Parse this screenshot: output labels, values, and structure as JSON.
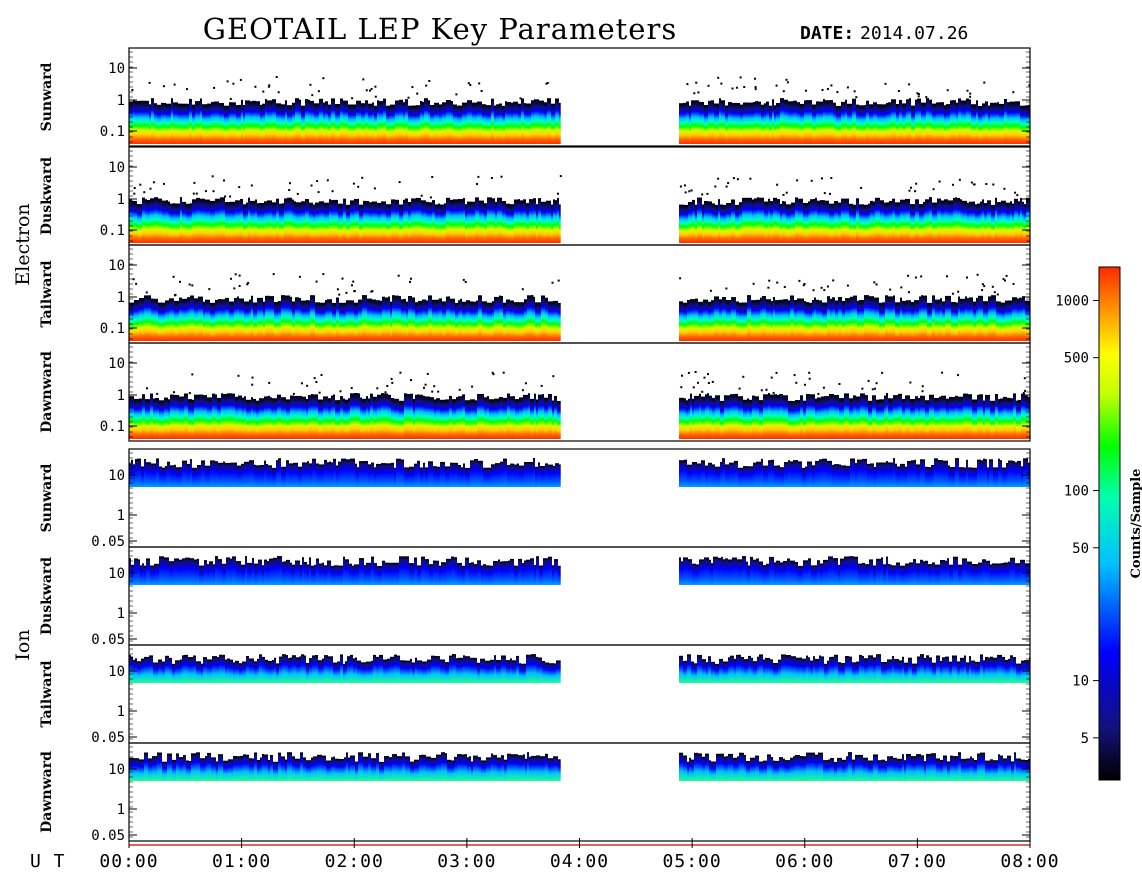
{
  "header": {
    "title": "GEOTAIL LEP Key Parameters",
    "date_label": "DATE:",
    "date_value": "2014.07.26"
  },
  "chart_data": {
    "type": "heatmap",
    "title": "GEOTAIL LEP Key Parameters",
    "x_axis": {
      "label": "U T",
      "range": [
        "00:00",
        "08:00"
      ],
      "ticks": [
        "00:00",
        "01:00",
        "02:00",
        "03:00",
        "04:00",
        "05:00",
        "06:00",
        "07:00",
        "08:00"
      ]
    },
    "data_gaps_ut": [
      [
        "03:50",
        "04:53"
      ]
    ],
    "groups": [
      {
        "name": "Electron",
        "y_ticks": [
          "10",
          "1",
          "0.1"
        ],
        "panels": [
          "Sunward",
          "Duskward",
          "Tailward",
          "Dawnward"
        ]
      },
      {
        "name": "Ion",
        "y_ticks": [
          "10",
          "1",
          "0.05"
        ],
        "panels": [
          "Sunward",
          "Duskward",
          "Tailward",
          "Dawnward"
        ]
      }
    ],
    "colorbar": {
      "label": "Counts/Sample",
      "scale": "log",
      "range": [
        3,
        1500
      ],
      "ticks": [
        "1000",
        "500",
        "100",
        "50",
        "10",
        "5"
      ],
      "tick_values": [
        1000,
        500,
        100,
        50,
        10,
        5
      ],
      "colors": [
        "#000000",
        "#10107a",
        "#0000ff",
        "#00bfff",
        "#00ffc0",
        "#00ff00",
        "#c0ff00",
        "#ffff00",
        "#ff9000",
        "#ff3000"
      ]
    }
  }
}
